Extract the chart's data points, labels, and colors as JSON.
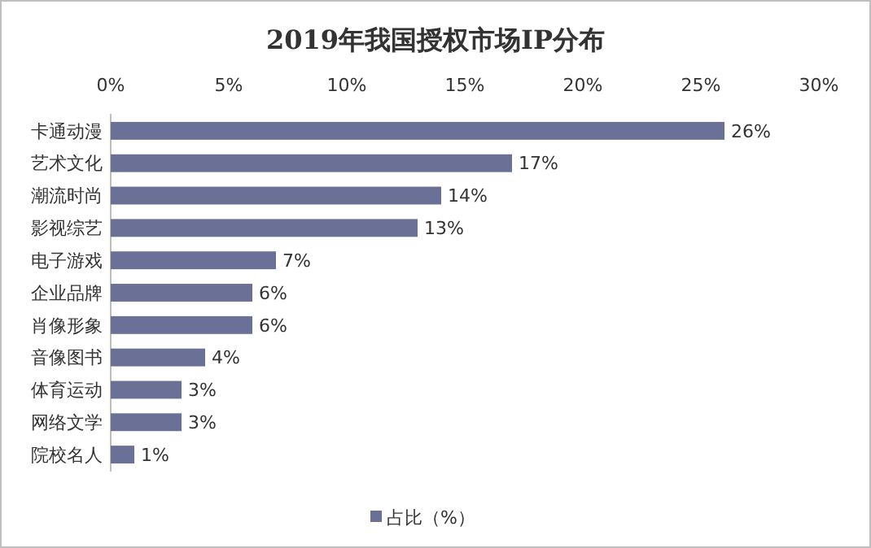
{
  "chart_data": {
    "type": "bar",
    "orientation": "horizontal",
    "title": "2019年我国授权市场IP分布",
    "categories": [
      "卡通动漫",
      "艺术文化",
      "潮流时尚",
      "影视综艺",
      "电子游戏",
      "企业品牌",
      "肖像形象",
      "音像图书",
      "体育运动",
      "网络文学",
      "院校名人"
    ],
    "series": [
      {
        "name": "占比（%）",
        "color": "#6b7096",
        "values": [
          26,
          17,
          14,
          13,
          7,
          6,
          6,
          4,
          3,
          3,
          1
        ]
      }
    ],
    "value_labels": [
      "26%",
      "17%",
      "14%",
      "13%",
      "7%",
      "6%",
      "6%",
      "4%",
      "3%",
      "3%",
      "1%"
    ],
    "xlim": [
      0,
      30
    ],
    "xticks": [
      {
        "value": 0,
        "label": "0%"
      },
      {
        "value": 5,
        "label": "5%"
      },
      {
        "value": 10,
        "label": "10%"
      },
      {
        "value": 15,
        "label": "15%"
      },
      {
        "value": 20,
        "label": "20%"
      },
      {
        "value": 25,
        "label": "25%"
      },
      {
        "value": 30,
        "label": "30%"
      }
    ],
    "legend": "bottom"
  }
}
